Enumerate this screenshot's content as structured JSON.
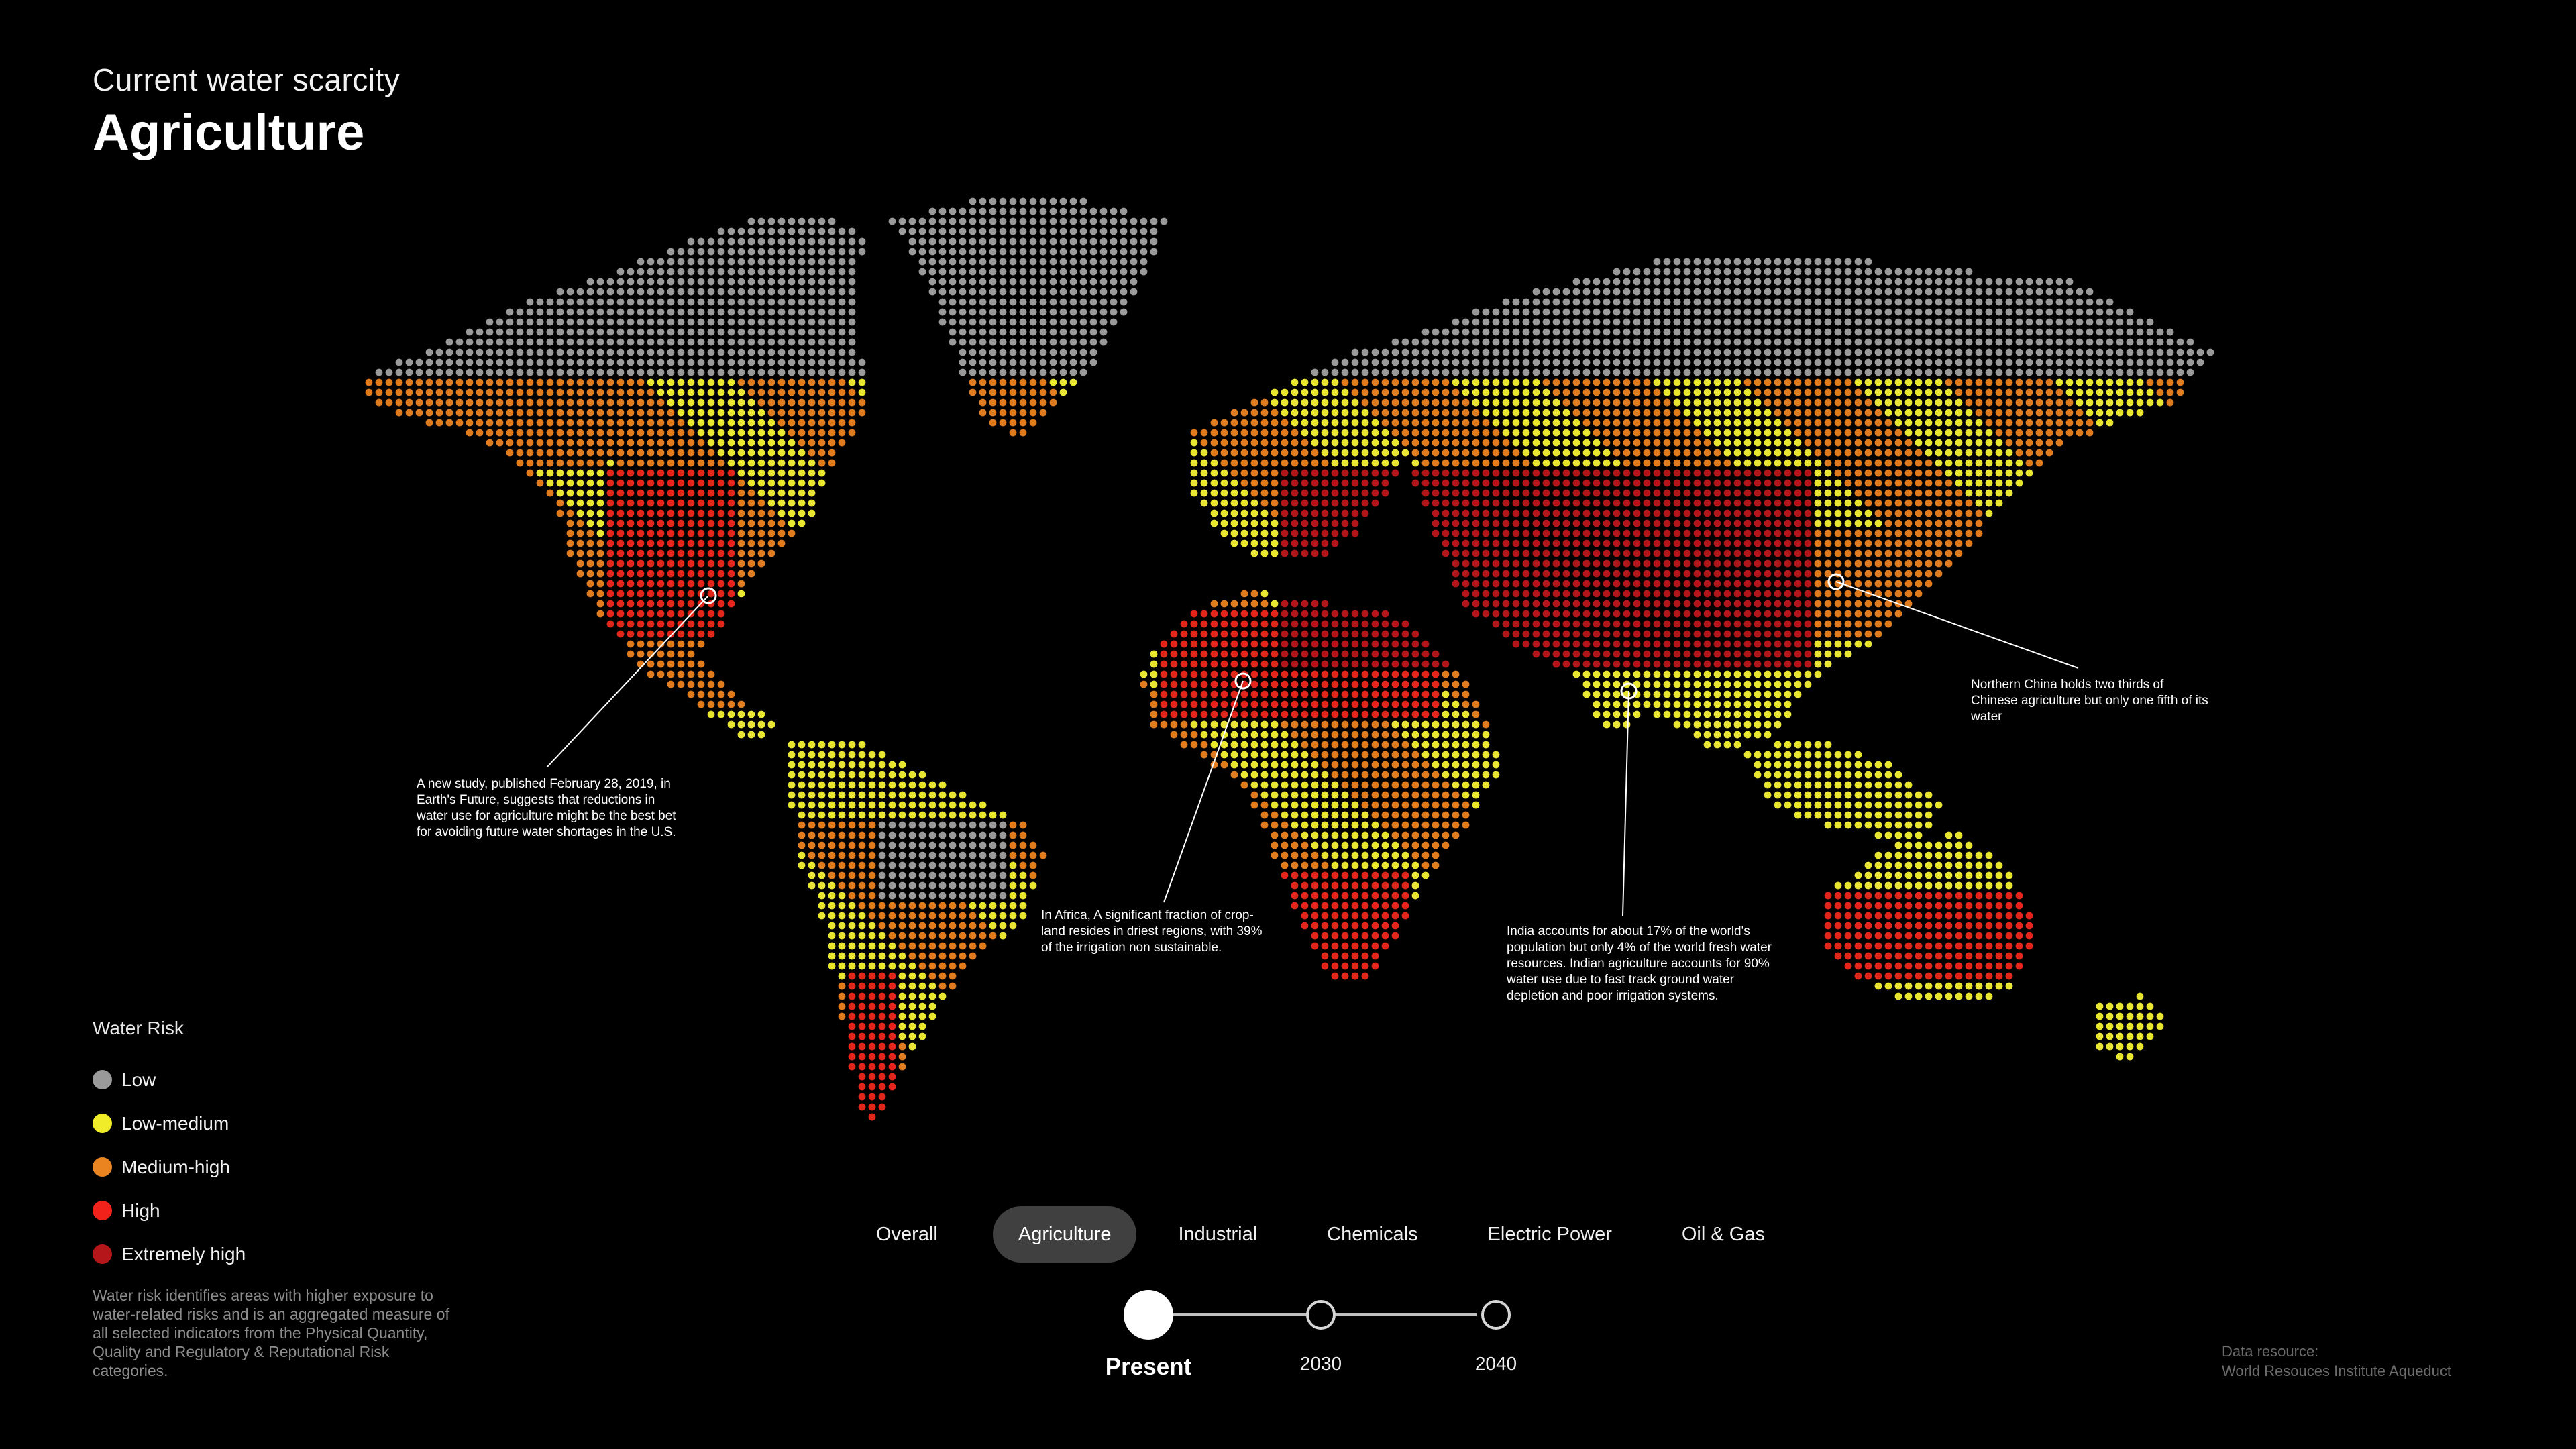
{
  "header": {
    "subtitle": "Current water scarcity",
    "title": "Agriculture"
  },
  "colors": {
    "background": "#000000",
    "low": "#9a9a9a",
    "low_medium": "#e8e630",
    "medium_high": "#e07b1e",
    "high": "#e2261b",
    "extremely_high": "#b3161a"
  },
  "callouts": {
    "us": "A new study, published February 28, 2019, in Earth's Future, suggests that reductions in water use for agriculture might be the best bet for avoiding future water shortages in the U.S.",
    "africa": "In Africa, A significant fraction of crop-land resides in driest regions, with 39% of the irrigation non sustainable.",
    "india": "India accounts for about 17% of the world's population but only 4% of the world fresh water resources. Indian agriculture accounts for 90% water use due to fast track ground water depletion and poor irrigation systems.",
    "china": "Northern China holds two thirds of Chinese agriculture but only one fifth of its water"
  },
  "legend": {
    "title": "Water Risk",
    "items": [
      {
        "label": "Low",
        "color": "#9a9a9a"
      },
      {
        "label": "Low-medium",
        "color": "#f1ec2a"
      },
      {
        "label": "Medium-high",
        "color": "#ea8420"
      },
      {
        "label": "High",
        "color": "#f0221a"
      },
      {
        "label": "Extremely high",
        "color": "#b5161a"
      }
    ],
    "description": "Water risk identifies areas with higher exposure to water-related risks and is an aggregated measure of all selected indicators from the Physical Quantity, Quality and Regulatory & Reputational Risk categories."
  },
  "tabs": [
    {
      "label": "Overall",
      "active": false
    },
    {
      "label": "Agriculture",
      "active": true
    },
    {
      "label": "Industrial",
      "active": false
    },
    {
      "label": "Chemicals",
      "active": false
    },
    {
      "label": "Electric Power",
      "active": false
    },
    {
      "label": "Oil & Gas",
      "active": false
    }
  ],
  "timeline": {
    "selected": "Present",
    "steps": [
      "Present",
      "2030",
      "2040"
    ]
  },
  "source": {
    "label": "Data resource:",
    "name": "World Resouces Institute Aqueduct"
  }
}
